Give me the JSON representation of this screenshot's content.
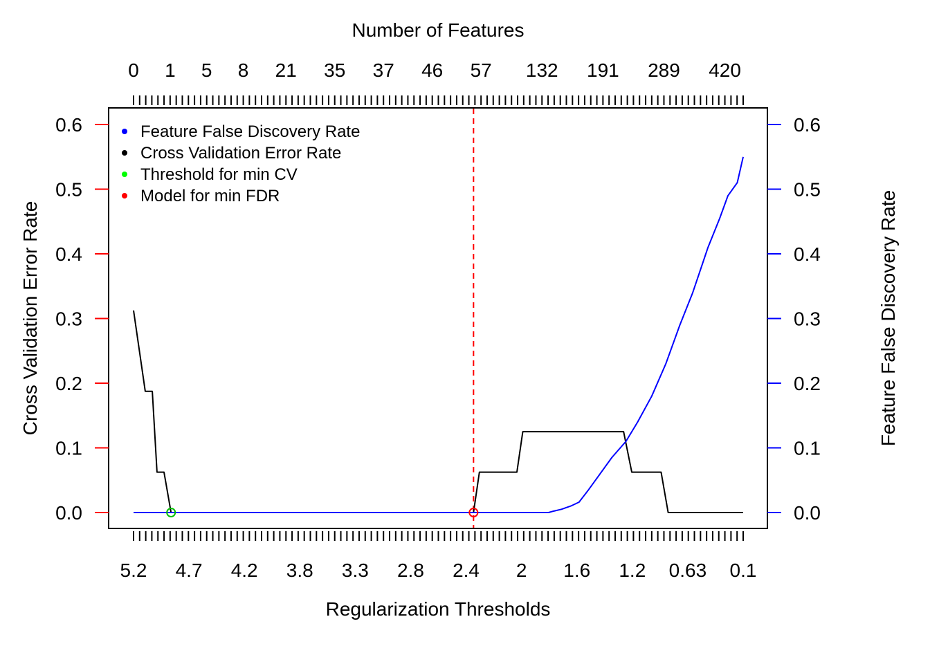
{
  "chart_data": {
    "type": "line",
    "xlabel": "Regularization Thresholds",
    "top_label": "Number of Features",
    "ylabel_left": "Cross Validation Error Rate",
    "ylabel_right": "Feature False Discovery Rate",
    "x_range": [
      5.2,
      0.0
    ],
    "ylim": [
      0,
      0.6
    ],
    "yticks": [
      "0.0",
      "0.1",
      "0.2",
      "0.3",
      "0.4",
      "0.5",
      "0.6"
    ],
    "bottom_tick_labels": [
      "5.2",
      "4.7",
      "4.2",
      "3.8",
      "3.3",
      "2.8",
      "2.4",
      "2",
      "1.6",
      "1.2",
      "0.63",
      "0.1"
    ],
    "top_tick_labels": [
      "0",
      "1",
      "5",
      "8",
      "21",
      "35",
      "37",
      "46",
      "57",
      "132",
      "191",
      "289",
      "420"
    ],
    "grid": false,
    "legend_position": "top-left",
    "legend": [
      {
        "label": "Feature False Discovery Rate",
        "color": "#0000ff"
      },
      {
        "label": "Cross Validation Error Rate",
        "color": "#000000"
      },
      {
        "label": "Threshold for min CV",
        "color": "#00ff00"
      },
      {
        "label": "Model for min FDR",
        "color": "#ff0000"
      }
    ],
    "series": [
      {
        "name": "Cross Validation Error Rate",
        "color": "#000000",
        "points": [
          [
            5.2,
            0.3125
          ],
          [
            5.1,
            0.1875
          ],
          [
            5.04,
            0.1875
          ],
          [
            5.0,
            0.0625
          ],
          [
            4.94,
            0.0625
          ],
          [
            4.88,
            0.0
          ],
          [
            2.3,
            0.0
          ],
          [
            2.25,
            0.0625
          ],
          [
            1.93,
            0.0625
          ],
          [
            1.88,
            0.125
          ],
          [
            1.02,
            0.125
          ],
          [
            0.95,
            0.0625
          ],
          [
            0.7,
            0.0625
          ],
          [
            0.64,
            0.0
          ],
          [
            0.0,
            0.0
          ]
        ]
      },
      {
        "name": "Feature False Discovery Rate",
        "color": "#0000ff",
        "points": [
          [
            5.2,
            0.0
          ],
          [
            1.66,
            0.0
          ],
          [
            1.62,
            0.002
          ],
          [
            1.55,
            0.005
          ],
          [
            1.47,
            0.01
          ],
          [
            1.4,
            0.016
          ],
          [
            1.32,
            0.035
          ],
          [
            1.22,
            0.06
          ],
          [
            1.12,
            0.085
          ],
          [
            1.0,
            0.11
          ],
          [
            0.9,
            0.14
          ],
          [
            0.78,
            0.18
          ],
          [
            0.66,
            0.23
          ],
          [
            0.54,
            0.29
          ],
          [
            0.43,
            0.34
          ],
          [
            0.3,
            0.41
          ],
          [
            0.2,
            0.455
          ],
          [
            0.13,
            0.49
          ],
          [
            0.05,
            0.51
          ],
          [
            0.0,
            0.55
          ]
        ]
      }
    ],
    "markers": [
      {
        "name": "Threshold for min CV",
        "x": 4.88,
        "y": 0.0,
        "color": "#00c000"
      },
      {
        "name": "Model for min FDR",
        "x": 2.3,
        "y": 0.0,
        "color": "#ff0000"
      }
    ],
    "vline": {
      "x": 2.3,
      "color": "#ff0000",
      "style": "dashed"
    }
  }
}
